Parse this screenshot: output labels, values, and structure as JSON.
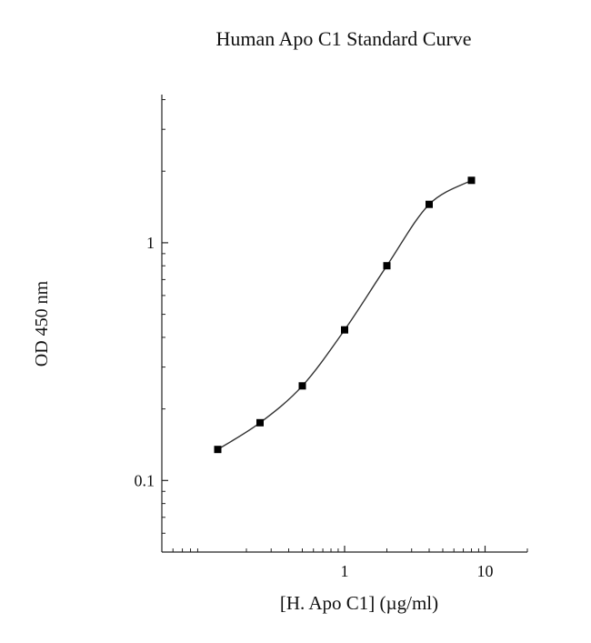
{
  "chart_data": {
    "type": "scatter",
    "title": "Human Apo C1 Standard Curve",
    "xlabel": "[H. Apo C1] (µg/ml)",
    "ylabel": "OD 450 nm",
    "x_scale": "log",
    "y_scale": "log",
    "xlim": [
      0.05,
      20
    ],
    "ylim": [
      0.05,
      4.2
    ],
    "x_ticks": [
      {
        "value": 1,
        "label": "1"
      },
      {
        "value": 10,
        "label": "10"
      }
    ],
    "y_ticks": [
      {
        "value": 0.1,
        "label": "0.1"
      },
      {
        "value": 1,
        "label": "1"
      }
    ],
    "grid": false,
    "legend": "none",
    "marker": "square",
    "color": "#000000",
    "series": [
      {
        "x": [
          0.125,
          0.25,
          0.5,
          1,
          2,
          4,
          8
        ],
        "y": [
          0.135,
          0.175,
          0.25,
          0.43,
          0.8,
          1.45,
          1.83
        ],
        "fit_curve": true
      }
    ]
  }
}
